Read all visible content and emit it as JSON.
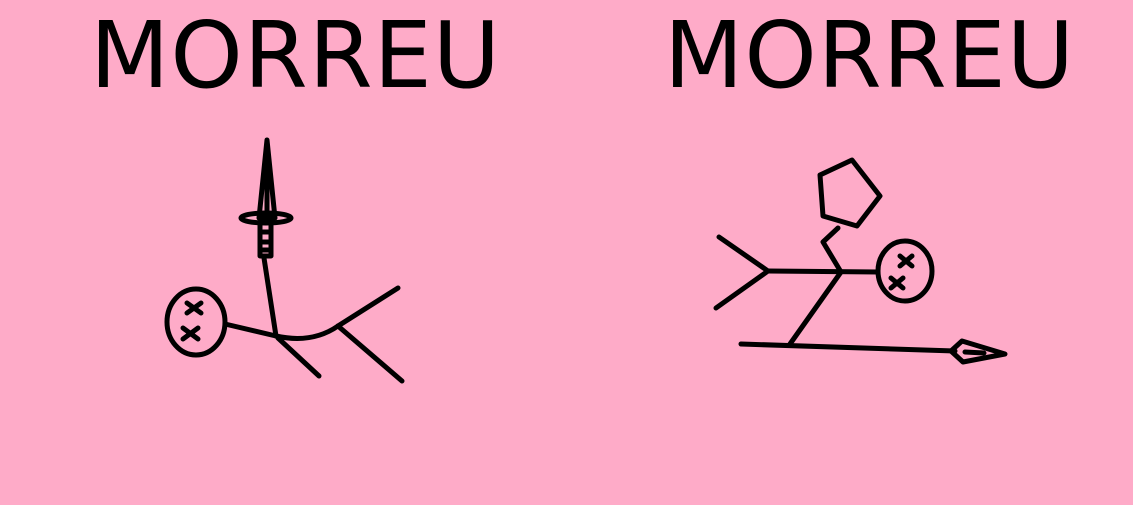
{
  "panels": [
    {
      "title": "MORREU"
    },
    {
      "title": "MORREU"
    }
  ],
  "colors": {
    "background": "#FEABC8",
    "ink": "#000000"
  }
}
